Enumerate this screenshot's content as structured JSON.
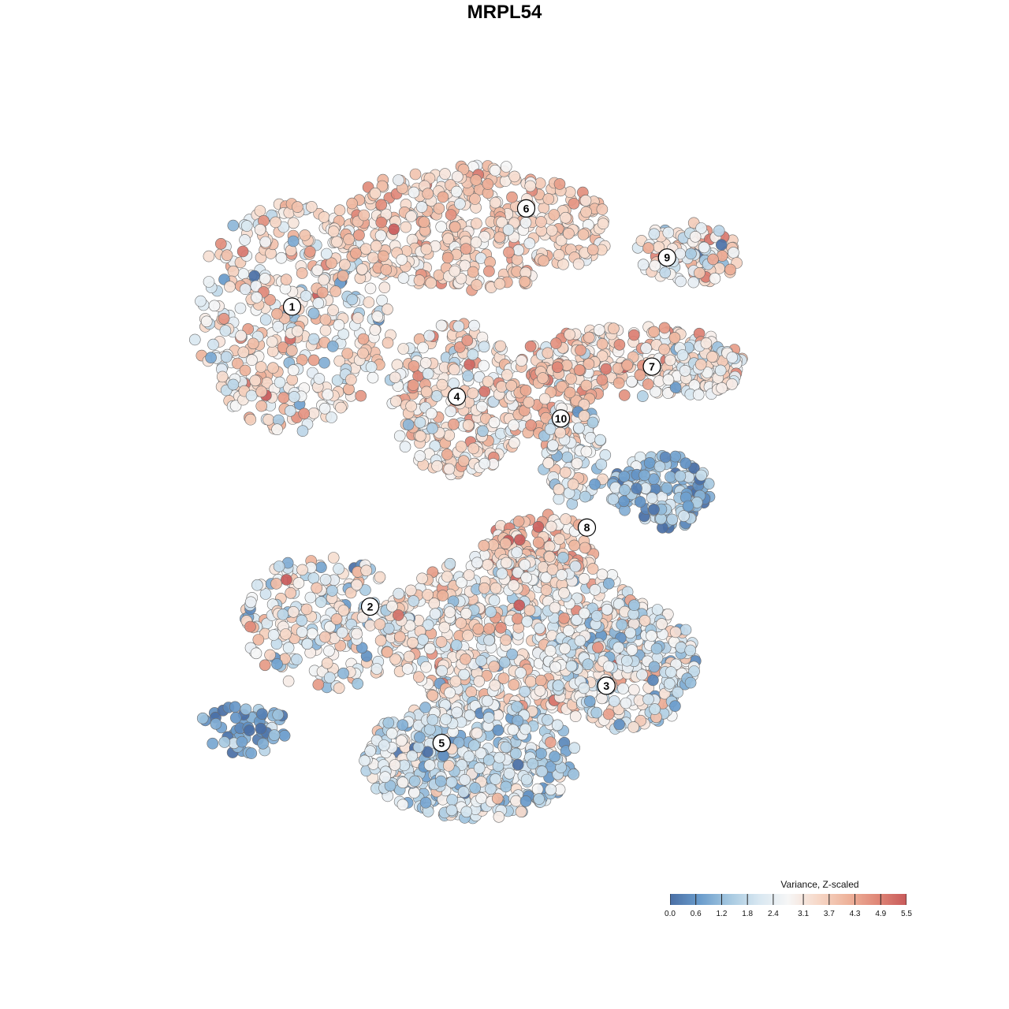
{
  "chart_data": {
    "type": "scatter",
    "title": "MRPL54",
    "colorbar": {
      "title": "Variance, Z-scaled",
      "range": [
        0.0,
        5.5
      ],
      "ticks": [
        "0.0",
        "0.6",
        "1.2",
        "1.8",
        "2.4",
        "3.1",
        "3.7",
        "4.3",
        "4.9",
        "5.5"
      ],
      "colors": [
        "#4a6fa5",
        "#6a9ccc",
        "#a5c8e0",
        "#d8e7f1",
        "#f6f6f6",
        "#f6d8c8",
        "#eeb49c",
        "#e08878",
        "#c85a5a"
      ]
    },
    "cluster_labels": [
      {
        "label": "1",
        "x": -9.8,
        "y": 7.4
      },
      {
        "label": "2",
        "x": -6.2,
        "y": -3.6
      },
      {
        "label": "3",
        "x": 4.7,
        "y": -6.5
      },
      {
        "label": "4",
        "x": -2.2,
        "y": 4.1
      },
      {
        "label": "5",
        "x": -2.9,
        "y": -8.6
      },
      {
        "label": "6",
        "x": 1.0,
        "y": 11.0
      },
      {
        "label": "7",
        "x": 6.8,
        "y": 5.2
      },
      {
        "label": "8",
        "x": 3.8,
        "y": -0.7
      },
      {
        "label": "9",
        "x": 7.5,
        "y": 9.2
      },
      {
        "label": "10",
        "x": 2.6,
        "y": 3.3
      }
    ]
  }
}
